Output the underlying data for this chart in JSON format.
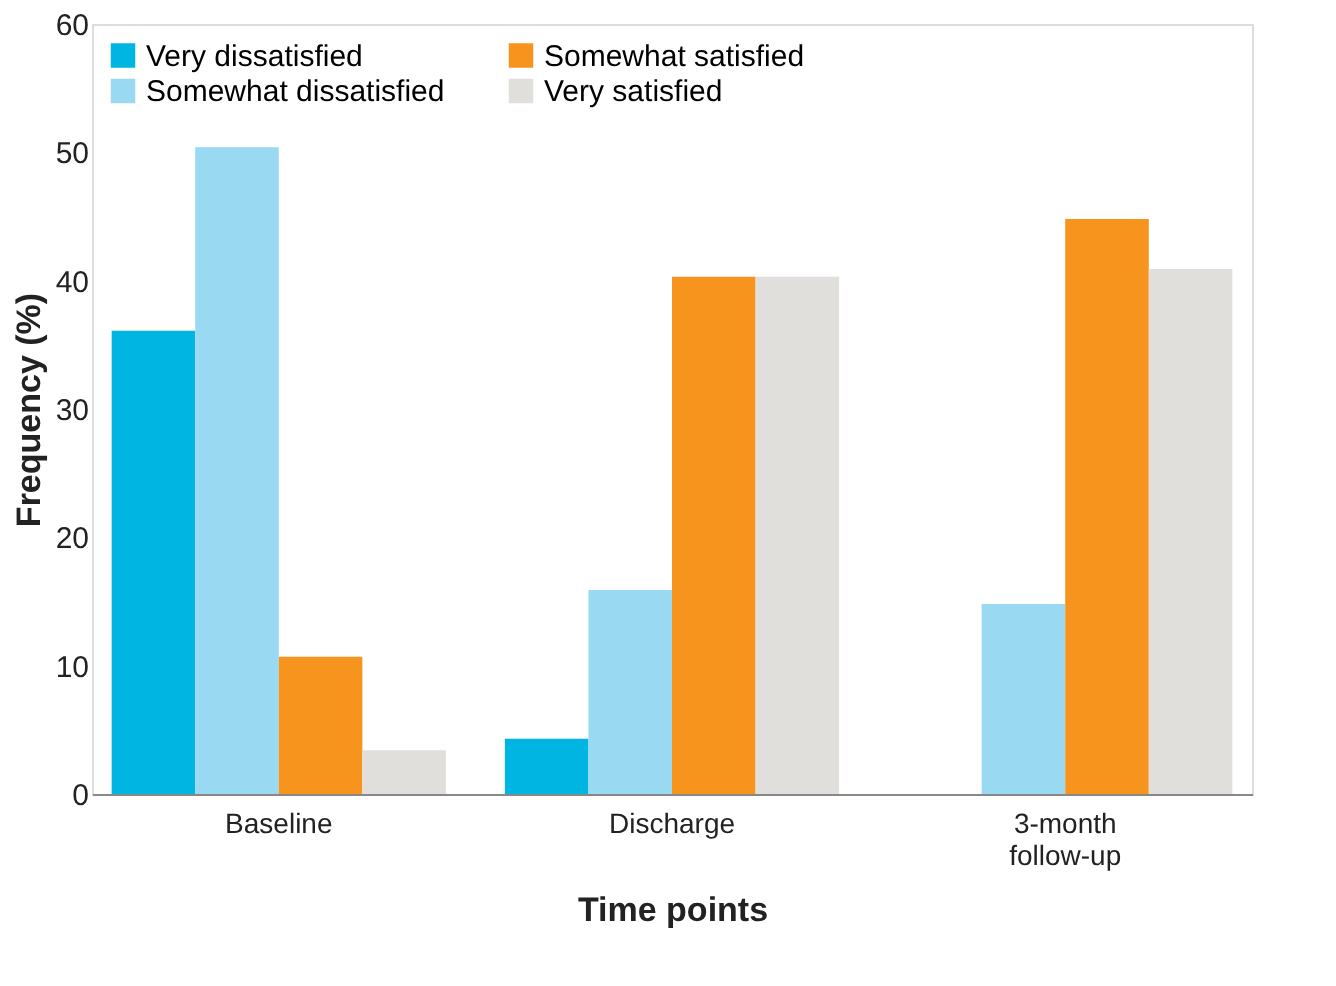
{
  "chart_data": {
    "type": "bar",
    "xlabel": "Time points",
    "ylabel": "Frequency (%)",
    "categories": [
      "Baseline",
      "Discharge",
      "3-month follow-up"
    ],
    "series": [
      {
        "name": "Very dissatisfied",
        "color": "#00b5e2",
        "values": [
          36.1,
          4.3,
          null
        ]
      },
      {
        "name": "Somewhat dissatisfied",
        "color": "#99daf2",
        "values": [
          50.4,
          15.9,
          14.8
        ]
      },
      {
        "name": "Somewhat satisfied",
        "color": "#f7941d",
        "values": [
          10.7,
          40.3,
          44.8
        ]
      },
      {
        "name": "Very satisfied",
        "color": "#e0dfdb",
        "values": [
          3.4,
          40.3,
          40.9
        ]
      }
    ],
    "ylim": [
      0,
      60
    ],
    "yticks": [
      0,
      10,
      20,
      30,
      40,
      50,
      60
    ],
    "grid": false,
    "legend": "top left"
  }
}
